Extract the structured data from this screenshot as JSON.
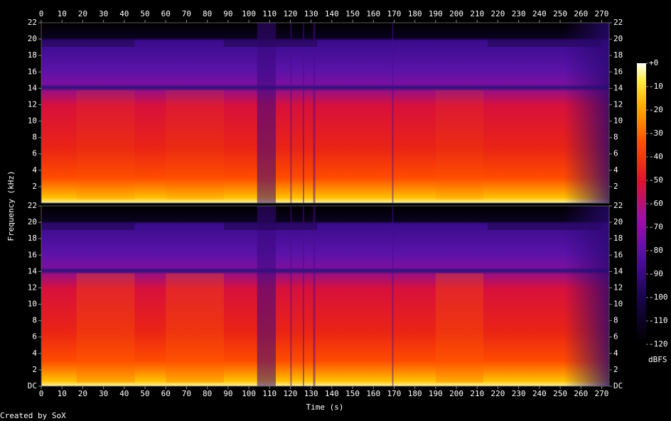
{
  "chart_data": {
    "type": "spectrogram",
    "x_label": "Time (s)",
    "y_label": "Frequency (kHz)",
    "xlim": [
      0,
      273.6
    ],
    "xticks": [
      0,
      10,
      20,
      30,
      40,
      50,
      60,
      70,
      80,
      90,
      100,
      110,
      120,
      130,
      140,
      150,
      160,
      170,
      180,
      190,
      200,
      210,
      220,
      230,
      240,
      250,
      260,
      270
    ],
    "channels": [
      {
        "ylim": [
          0,
          22
        ],
        "yticks": [
          2,
          4,
          6,
          8,
          10,
          12,
          14,
          16,
          18,
          20,
          22
        ]
      },
      {
        "ylim": [
          0,
          22
        ],
        "yticks": [
          {
            "value": 0,
            "label": "DC"
          },
          2,
          4,
          6,
          8,
          10,
          12,
          14,
          16,
          18,
          20,
          22
        ]
      }
    ],
    "colorbar": {
      "label": "dBFS",
      "lim": [
        -120,
        0
      ],
      "ticks": [
        {
          "value": 0,
          "label": "+0"
        },
        -10,
        -20,
        -30,
        -40,
        -50,
        -60,
        -70,
        -80,
        -90,
        -100,
        -110,
        -120
      ]
    },
    "footer": "Created by SoX"
  }
}
